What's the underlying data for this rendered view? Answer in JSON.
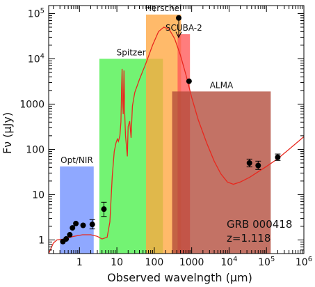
{
  "chart_data": {
    "type": "scatter",
    "xscale": "log",
    "yscale": "log",
    "xlim": [
      0.15,
      1000000
    ],
    "ylim": [
      0.5,
      150000
    ],
    "xlabel": "Observed wavelngth (μm)",
    "ylabel": "Fν (μJy)",
    "x_ticks": [
      {
        "value": 1,
        "label": "1"
      },
      {
        "value": 10,
        "label": "10"
      },
      {
        "value": 100,
        "label": "100"
      },
      {
        "value": 1000,
        "label": "1000"
      },
      {
        "value": 10000,
        "label": "10^4"
      },
      {
        "value": 100000,
        "label": "10^5"
      },
      {
        "value": 1000000,
        "label": "10^6"
      }
    ],
    "y_ticks": [
      {
        "value": 1,
        "label": "1"
      },
      {
        "value": 10,
        "label": "10"
      },
      {
        "value": 100,
        "label": "100"
      },
      {
        "value": 1000,
        "label": "1000"
      },
      {
        "value": 10000,
        "label": "10^4"
      },
      {
        "value": 100000,
        "label": "10^5"
      }
    ],
    "bands": [
      {
        "name": "Opt/NIR",
        "xmin": 0.3,
        "xmax": 2.4,
        "ymax": 42,
        "color": "#6f8fff"
      },
      {
        "name": "Spitzer",
        "xmin": 3.4,
        "xmax": 170,
        "ymax": 10000,
        "color": "#4cf04c"
      },
      {
        "name": "Herschel",
        "xmin": 60,
        "xmax": 520,
        "ymax": 95000,
        "color": "#ffa640"
      },
      {
        "name": "SCUBA-2",
        "xmin": 420,
        "xmax": 900,
        "ymax": 35000,
        "color": "#ff5858"
      },
      {
        "name": "ALMA",
        "xmin": 300,
        "xmax": 130000,
        "ymax": 1900,
        "color": "#b24a3a"
      }
    ],
    "points": [
      {
        "x": 0.36,
        "y": 0.92
      },
      {
        "x": 0.44,
        "y": 1.05
      },
      {
        "x": 0.55,
        "y": 1.3
      },
      {
        "x": 0.65,
        "y": 1.85
      },
      {
        "x": 0.8,
        "y": 2.3
      },
      {
        "x": 1.25,
        "y": 2.1
      },
      {
        "x": 2.2,
        "y": 2.2,
        "err": [
          1.75,
          2.8
        ]
      },
      {
        "x": 4.5,
        "y": 4.8,
        "err": [
          3.3,
          6.8
        ]
      },
      {
        "x": 850,
        "y": 3200
      },
      {
        "x": 35000,
        "y": 50,
        "err": [
          41,
          61
        ]
      },
      {
        "x": 60000,
        "y": 44,
        "err": [
          36,
          55
        ]
      },
      {
        "x": 200000,
        "y": 67,
        "err": [
          57,
          79
        ]
      }
    ],
    "upper_limits": [
      {
        "x": 450,
        "y": 80000
      }
    ],
    "model_curve": [
      [
        0.15,
        0.5
      ],
      [
        0.2,
        0.85
      ],
      [
        0.25,
        1.0
      ],
      [
        0.4,
        1.05
      ],
      [
        0.7,
        1.2
      ],
      [
        1.2,
        1.3
      ],
      [
        2.0,
        1.3
      ],
      [
        3.0,
        1.2
      ],
      [
        4.0,
        1.05
      ],
      [
        5.5,
        1.15
      ],
      [
        6.5,
        2.5
      ],
      [
        7.5,
        25
      ],
      [
        8.5,
        90
      ],
      [
        9.5,
        140
      ],
      [
        10.3,
        170
      ],
      [
        11.0,
        150
      ],
      [
        12.0,
        200
      ],
      [
        12.8,
        400
      ],
      [
        13.3,
        2000
      ],
      [
        13.8,
        6000
      ],
      [
        14.2,
        1200
      ],
      [
        14.8,
        600
      ],
      [
        15.5,
        5500
      ],
      [
        16.2,
        600
      ],
      [
        17.0,
        200
      ],
      [
        18.0,
        120
      ],
      [
        19.0,
        70
      ],
      [
        20.0,
        320
      ],
      [
        22.0,
        420
      ],
      [
        24.0,
        180
      ],
      [
        26.0,
        900
      ],
      [
        30.0,
        1800
      ],
      [
        40.0,
        3500
      ],
      [
        60.0,
        8000
      ],
      [
        90.0,
        20000
      ],
      [
        130.0,
        40000
      ],
      [
        180.0,
        50000
      ],
      [
        250.0,
        45000
      ],
      [
        350.0,
        28000
      ],
      [
        500.0,
        12000
      ],
      [
        700.0,
        4500
      ],
      [
        1000.0,
        1400
      ],
      [
        1500.0,
        450
      ],
      [
        2500.0,
        140
      ],
      [
        4000.0,
        55
      ],
      [
        6000.0,
        29
      ],
      [
        9000.0,
        19
      ],
      [
        13000.0,
        17
      ],
      [
        20000.0,
        19
      ],
      [
        35000.0,
        24
      ],
      [
        60000.0,
        32
      ],
      [
        100000.0,
        42
      ],
      [
        200000.0,
        62
      ],
      [
        400000.0,
        100
      ],
      [
        1000000.0,
        190
      ]
    ],
    "annotations": [
      "GRB 000418",
      "z=1.118"
    ]
  }
}
